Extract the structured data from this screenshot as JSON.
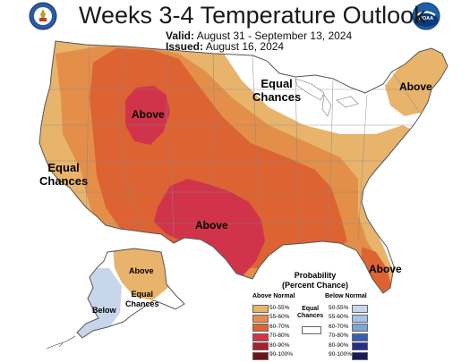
{
  "header": {
    "title": "Weeks 3-4 Temperature Outlook",
    "valid_label": "Valid:",
    "valid_value": "August 31 - September 13, 2024",
    "issued_label": "Issued:",
    "issued_value": "August 16, 2024"
  },
  "map_labels": {
    "equal_chances_north": "Equal\nChances",
    "above_rockies": "Above",
    "above_northeast": "Above",
    "equal_chances_west": "Equal\nChances",
    "above_texas": "Above",
    "above_florida": "Above",
    "above_alaska": "Above",
    "below_alaska": "Below",
    "equal_chances_alaska": "Equal\nChances"
  },
  "legend": {
    "title": "Probability\n(Percent Chance)",
    "above_header": "Above Normal",
    "below_header": "Below Normal",
    "equal_label": "Equal\nChances",
    "above": [
      {
        "label": "50-55%",
        "color": "#e8b46c"
      },
      {
        "label": "55-60%",
        "color": "#e38f4a"
      },
      {
        "label": "60-70%",
        "color": "#de6332"
      },
      {
        "label": "70-80%",
        "color": "#d1344a"
      },
      {
        "label": "80-90%",
        "color": "#a8202e"
      },
      {
        "label": "90-100%",
        "color": "#6e1418"
      }
    ],
    "below": [
      {
        "label": "50-55%",
        "color": "#c7d6ea"
      },
      {
        "label": "55-60%",
        "color": "#a6c2e4"
      },
      {
        "label": "60-70%",
        "color": "#7aa6d8"
      },
      {
        "label": "70-80%",
        "color": "#3b5fb0"
      },
      {
        "label": "80-90%",
        "color": "#242f8c"
      },
      {
        "label": "90-100%",
        "color": "#141a5c"
      }
    ]
  },
  "colors": {
    "above_50_55": "#e8b46c",
    "above_55_60": "#e38f4a",
    "above_60_70": "#de6332",
    "above_70_80": "#d1344a",
    "below_50_55": "#c7d6ea",
    "noaa_blue": "#1e5fa8",
    "doc_blue": "#2c5aa0"
  },
  "icons": {
    "left_logo": "commerce-seal-icon",
    "right_logo": "noaa-logo-icon"
  }
}
